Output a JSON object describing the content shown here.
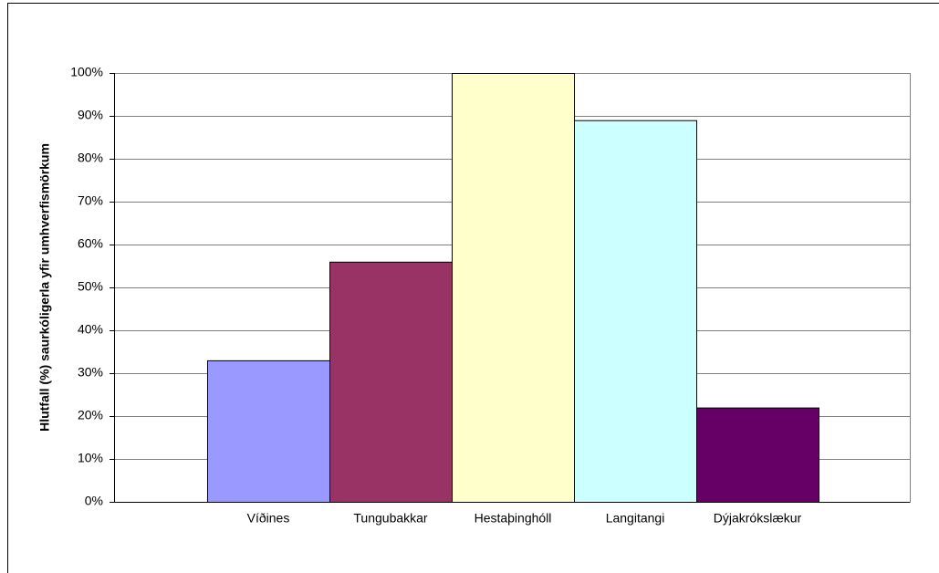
{
  "chart_data": {
    "type": "bar",
    "y_label": "Hlutfall (%) saurkóligerla yfir umhverfismörkum",
    "categories": [
      "Víðines",
      "Tungubakkar",
      "Hestaþinghóll",
      "Langitangi",
      "Dýjakrókslækur"
    ],
    "values": [
      33,
      56,
      100,
      89,
      22
    ],
    "colors": [
      "#9999ff",
      "#993366",
      "#ffffcc",
      "#ccffff",
      "#660066"
    ],
    "ylim": [
      0,
      100
    ],
    "yticks": [
      {
        "value": 0,
        "label": "0%"
      },
      {
        "value": 10,
        "label": "10%"
      },
      {
        "value": 20,
        "label": "20%"
      },
      {
        "value": 30,
        "label": "30%"
      },
      {
        "value": 40,
        "label": "40%"
      },
      {
        "value": 50,
        "label": "50%"
      },
      {
        "value": 60,
        "label": "60%"
      },
      {
        "value": 70,
        "label": "70%"
      },
      {
        "value": 80,
        "label": "80%"
      },
      {
        "value": 90,
        "label": "90%"
      },
      {
        "value": 100,
        "label": "100%"
      }
    ],
    "grid": true
  }
}
